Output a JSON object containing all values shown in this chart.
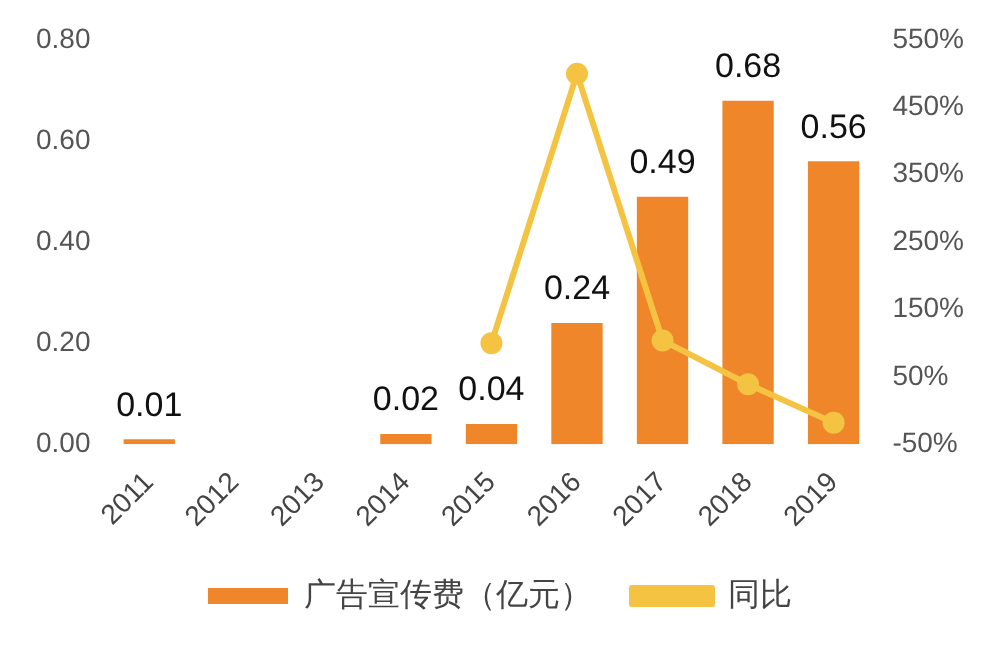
{
  "chart_data": {
    "type": "bar",
    "categories": [
      "2011",
      "2012",
      "2013",
      "2014",
      "2015",
      "2016",
      "2017",
      "2018",
      "2019"
    ],
    "series": [
      {
        "name": "广告宣传费（亿元）",
        "color": "#f0862a",
        "values": [
          0.01,
          null,
          null,
          0.02,
          0.04,
          0.24,
          0.49,
          0.68,
          0.56
        ],
        "data_labels": true
      },
      {
        "name": "同比",
        "type": "line",
        "axis": "y2",
        "color": "#f5c342",
        "values": [
          null,
          null,
          null,
          null,
          100,
          500,
          104,
          39,
          -18
        ],
        "marker": "circle"
      }
    ],
    "ylim": [
      0,
      0.8
    ],
    "yticks": [
      {
        "value": 0,
        "label": "0.00"
      },
      {
        "value": 0.2,
        "label": "0.20"
      },
      {
        "value": 0.4,
        "label": "0.40"
      },
      {
        "value": 0.6,
        "label": "0.60"
      },
      {
        "value": 0.8,
        "label": "0.80"
      }
    ],
    "y2lim": [
      -50,
      550
    ],
    "y2ticks": [
      {
        "value": -50,
        "label": "-50%"
      },
      {
        "value": 50,
        "label": "50%"
      },
      {
        "value": 150,
        "label": "150%"
      },
      {
        "value": 250,
        "label": "250%"
      },
      {
        "value": 350,
        "label": "350%"
      },
      {
        "value": 450,
        "label": "450%"
      },
      {
        "value": 550,
        "label": "550%"
      }
    ],
    "grid": false,
    "legend": "bottom"
  }
}
